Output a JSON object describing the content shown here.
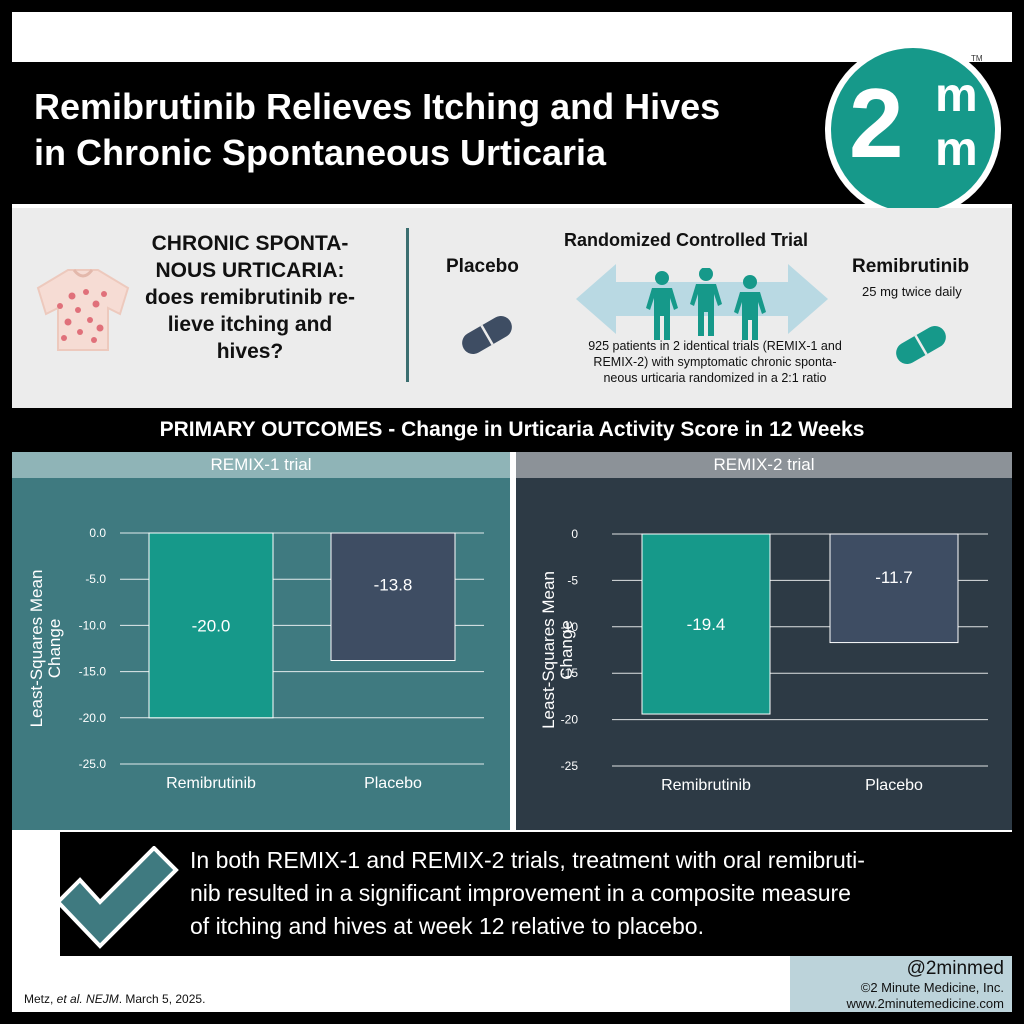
{
  "header": {
    "title_line1": "Remibrutinib Relieves Itching and Hives",
    "title_line2": "in Chronic Spontaneous Urticaria",
    "logo_text": "2",
    "logo_m_top": "m",
    "logo_m_bottom": "m",
    "logo_tm": "TM"
  },
  "intro": {
    "question_lines": [
      "CHRONIC SPONTA-",
      "NOUS URTICARIA:",
      "does remibrutinib re-",
      "lieve itching and",
      "hives?"
    ],
    "placebo_label": "Placebo",
    "rct_title": "Randomized Controlled Trial",
    "rct_desc_lines": [
      "925 patients in 2 identical trials (REMIX-1 and",
      "REMIX-2) with symptomatic chronic sponta-",
      "neous urticaria randomized in a 2:1 ratio"
    ],
    "remi_label": "Remibrutinib",
    "remi_dose": "25 mg twice daily"
  },
  "outcomes": {
    "title": "PRIMARY OUTCOMES - Change in Urticaria Activity Score in 12 Weeks"
  },
  "chart_data": [
    {
      "type": "bar",
      "title": "REMIX-1 trial",
      "ylabel": "Least-Squares Mean Change",
      "categories": [
        "Remibrutinib",
        "Placebo"
      ],
      "values": [
        -20.0,
        -13.8
      ],
      "value_labels": [
        "-20.0",
        "-13.8"
      ],
      "ylim": [
        -25,
        0
      ],
      "ticks": [
        0,
        -5,
        -10,
        -15,
        -20,
        -25
      ],
      "tick_labels": [
        "0.0",
        "-5.0",
        "-10.0",
        "-15.0",
        "-20.0",
        "-25.0"
      ],
      "grid": true,
      "colors": [
        "#16998a",
        "#3e4d63"
      ]
    },
    {
      "type": "bar",
      "title": "REMIX-2 trial",
      "ylabel": "Least-Squares Mean Change",
      "categories": [
        "Remibrutinib",
        "Placebo"
      ],
      "values": [
        -19.4,
        -11.7
      ],
      "value_labels": [
        "-19.4",
        "-11.7"
      ],
      "ylim": [
        -25,
        0
      ],
      "ticks": [
        0,
        -5,
        -10,
        -15,
        -20,
        -25
      ],
      "tick_labels": [
        "0",
        "-5",
        "-10",
        "-15",
        "-20",
        "-25"
      ],
      "grid": true,
      "colors": [
        "#16998a",
        "#3e4d63"
      ]
    }
  ],
  "conclusion": {
    "lines": [
      "In both REMIX-1 and REMIX-2 trials, treatment with oral remibruti-",
      "nib resulted in a significant improvement in a composite measure",
      "of itching and hives at week 12 relative to placebo."
    ]
  },
  "footer": {
    "citation_prefix": "Metz, ",
    "citation_etal": "et al.",
    "citation_journal": "NEJM",
    "citation_date": ". March 5, 2025.",
    "handle": "@2minmed",
    "copyright": "©2 Minute Medicine, Inc.",
    "website": "www.2minutemedicine.com"
  },
  "colors": {
    "teal": "#16998a",
    "panel_left": "#3f7a80",
    "panel_right": "#2d3a45",
    "placebo_bar": "#3e4d63"
  }
}
